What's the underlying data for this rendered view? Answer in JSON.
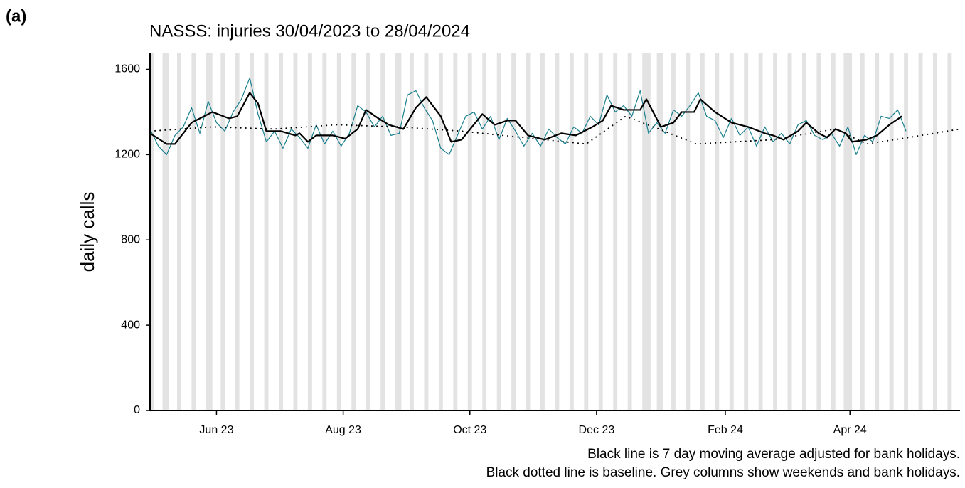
{
  "panel_label": "(a)",
  "chart_data": {
    "type": "line",
    "title": "NASSS: injuries 30/04/2023 to 28/04/2024",
    "y_label": "daily calls",
    "notes": [
      "Black line is 7 day moving average adjusted for bank holidays.",
      "Black dotted line is baseline. Grey columns show weekends and bank holidays."
    ],
    "xlim": [
      0,
      390
    ],
    "xticks": [
      {
        "value": 32,
        "label": "Jun 23"
      },
      {
        "value": 93,
        "label": "Aug 23"
      },
      {
        "value": 154,
        "label": "Oct 23"
      },
      {
        "value": 215,
        "label": "Dec 23"
      },
      {
        "value": 277,
        "label": "Feb 24"
      },
      {
        "value": 337,
        "label": "Apr 24"
      }
    ],
    "ylim": [
      0,
      1675
    ],
    "yticks": [
      0,
      400,
      800,
      1200,
      1600
    ],
    "shade_color": "#e3e3e3",
    "shaded_days": [
      [
        0,
        2
      ],
      [
        6,
        9
      ],
      [
        13,
        15
      ],
      [
        20,
        22
      ],
      [
        27,
        30
      ],
      [
        34,
        36
      ],
      [
        41,
        43
      ],
      [
        48,
        50
      ],
      [
        55,
        57
      ],
      [
        62,
        64
      ],
      [
        69,
        71
      ],
      [
        76,
        78
      ],
      [
        83,
        85
      ],
      [
        90,
        92
      ],
      [
        97,
        99
      ],
      [
        104,
        106
      ],
      [
        111,
        113
      ],
      [
        118,
        121
      ],
      [
        125,
        127
      ],
      [
        132,
        134
      ],
      [
        139,
        141
      ],
      [
        146,
        148
      ],
      [
        153,
        155
      ],
      [
        160,
        162
      ],
      [
        167,
        169
      ],
      [
        174,
        176
      ],
      [
        181,
        183
      ],
      [
        188,
        190
      ],
      [
        195,
        197
      ],
      [
        202,
        204
      ],
      [
        209,
        211
      ],
      [
        216,
        218
      ],
      [
        223,
        225
      ],
      [
        230,
        232
      ],
      [
        237,
        241
      ],
      [
        244,
        247
      ],
      [
        251,
        253
      ],
      [
        258,
        260
      ],
      [
        265,
        267
      ],
      [
        272,
        274
      ],
      [
        279,
        281
      ],
      [
        286,
        288
      ],
      [
        293,
        295
      ],
      [
        300,
        302
      ],
      [
        307,
        309
      ],
      [
        314,
        316
      ],
      [
        321,
        323
      ],
      [
        328,
        330
      ],
      [
        334,
        338
      ],
      [
        342,
        344
      ],
      [
        349,
        351
      ],
      [
        356,
        358
      ],
      [
        363,
        365
      ],
      [
        370,
        372
      ],
      [
        377,
        379
      ],
      [
        384,
        386
      ]
    ],
    "series": [
      {
        "color": "#1a7f8e",
        "width": 1.2,
        "dash": "solid",
        "x": [
          0,
          4,
          8,
          12,
          16,
          20,
          24,
          28,
          32,
          36,
          40,
          44,
          48,
          52,
          56,
          60,
          64,
          68,
          72,
          76,
          80,
          84,
          88,
          92,
          96,
          100,
          104,
          108,
          112,
          116,
          120,
          124,
          128,
          132,
          136,
          140,
          144,
          148,
          152,
          156,
          160,
          164,
          168,
          172,
          176,
          180,
          184,
          188,
          192,
          196,
          200,
          204,
          208,
          212,
          216,
          220,
          224,
          228,
          232,
          236,
          240,
          244,
          248,
          252,
          256,
          260,
          264,
          268,
          272,
          276,
          280,
          284,
          288,
          292,
          296,
          300,
          304,
          308,
          312,
          316,
          320,
          324,
          328,
          332,
          336,
          340,
          344,
          348,
          352,
          356,
          360,
          364
        ],
        "values": [
          1320,
          1240,
          1200,
          1290,
          1330,
          1420,
          1300,
          1450,
          1350,
          1310,
          1400,
          1460,
          1560,
          1390,
          1260,
          1310,
          1230,
          1320,
          1280,
          1230,
          1340,
          1250,
          1310,
          1240,
          1300,
          1430,
          1400,
          1330,
          1380,
          1290,
          1300,
          1480,
          1500,
          1420,
          1360,
          1230,
          1200,
          1290,
          1380,
          1400,
          1320,
          1380,
          1270,
          1370,
          1310,
          1240,
          1300,
          1240,
          1320,
          1280,
          1250,
          1330,
          1300,
          1380,
          1340,
          1480,
          1400,
          1430,
          1380,
          1500,
          1300,
          1350,
          1300,
          1410,
          1380,
          1430,
          1490,
          1380,
          1360,
          1280,
          1370,
          1290,
          1330,
          1240,
          1330,
          1260,
          1300,
          1250,
          1340,
          1360,
          1290,
          1270,
          1300,
          1240,
          1330,
          1200,
          1290,
          1260,
          1380,
          1370,
          1410,
          1310
        ]
      },
      {
        "color": "#000000",
        "width": 2.2,
        "dash": "solid",
        "x": [
          0,
          8,
          12,
          20,
          30,
          38,
          42,
          48,
          52,
          56,
          63,
          70,
          72,
          76,
          80,
          88,
          94,
          100,
          104,
          110,
          115,
          122,
          128,
          133,
          140,
          145,
          150,
          155,
          160,
          166,
          172,
          176,
          182,
          190,
          198,
          205,
          213,
          218,
          222,
          228,
          236,
          239,
          246,
          252,
          256,
          262,
          265,
          272,
          280,
          288,
          296,
          300,
          305,
          312,
          316,
          322,
          326,
          330,
          335,
          338,
          345,
          350,
          356,
          362
        ],
        "values": [
          1300,
          1250,
          1250,
          1350,
          1400,
          1370,
          1380,
          1490,
          1440,
          1310,
          1310,
          1290,
          1300,
          1260,
          1290,
          1290,
          1275,
          1320,
          1410,
          1370,
          1340,
          1320,
          1420,
          1470,
          1380,
          1260,
          1270,
          1330,
          1390,
          1340,
          1360,
          1360,
          1290,
          1270,
          1300,
          1290,
          1330,
          1360,
          1430,
          1410,
          1410,
          1460,
          1330,
          1350,
          1400,
          1400,
          1460,
          1400,
          1350,
          1330,
          1300,
          1290,
          1270,
          1310,
          1350,
          1300,
          1280,
          1320,
          1300,
          1260,
          1270,
          1290,
          1340,
          1380
        ]
      },
      {
        "color": "#000000",
        "width": 2,
        "dash": "dotted",
        "x": [
          0,
          30,
          60,
          90,
          120,
          150,
          180,
          210,
          229,
          245,
          263,
          300,
          330,
          345,
          365,
          390
        ],
        "values": [
          1310,
          1330,
          1320,
          1340,
          1330,
          1310,
          1280,
          1250,
          1380,
          1320,
          1250,
          1270,
          1320,
          1250,
          1280,
          1320
        ]
      }
    ]
  }
}
